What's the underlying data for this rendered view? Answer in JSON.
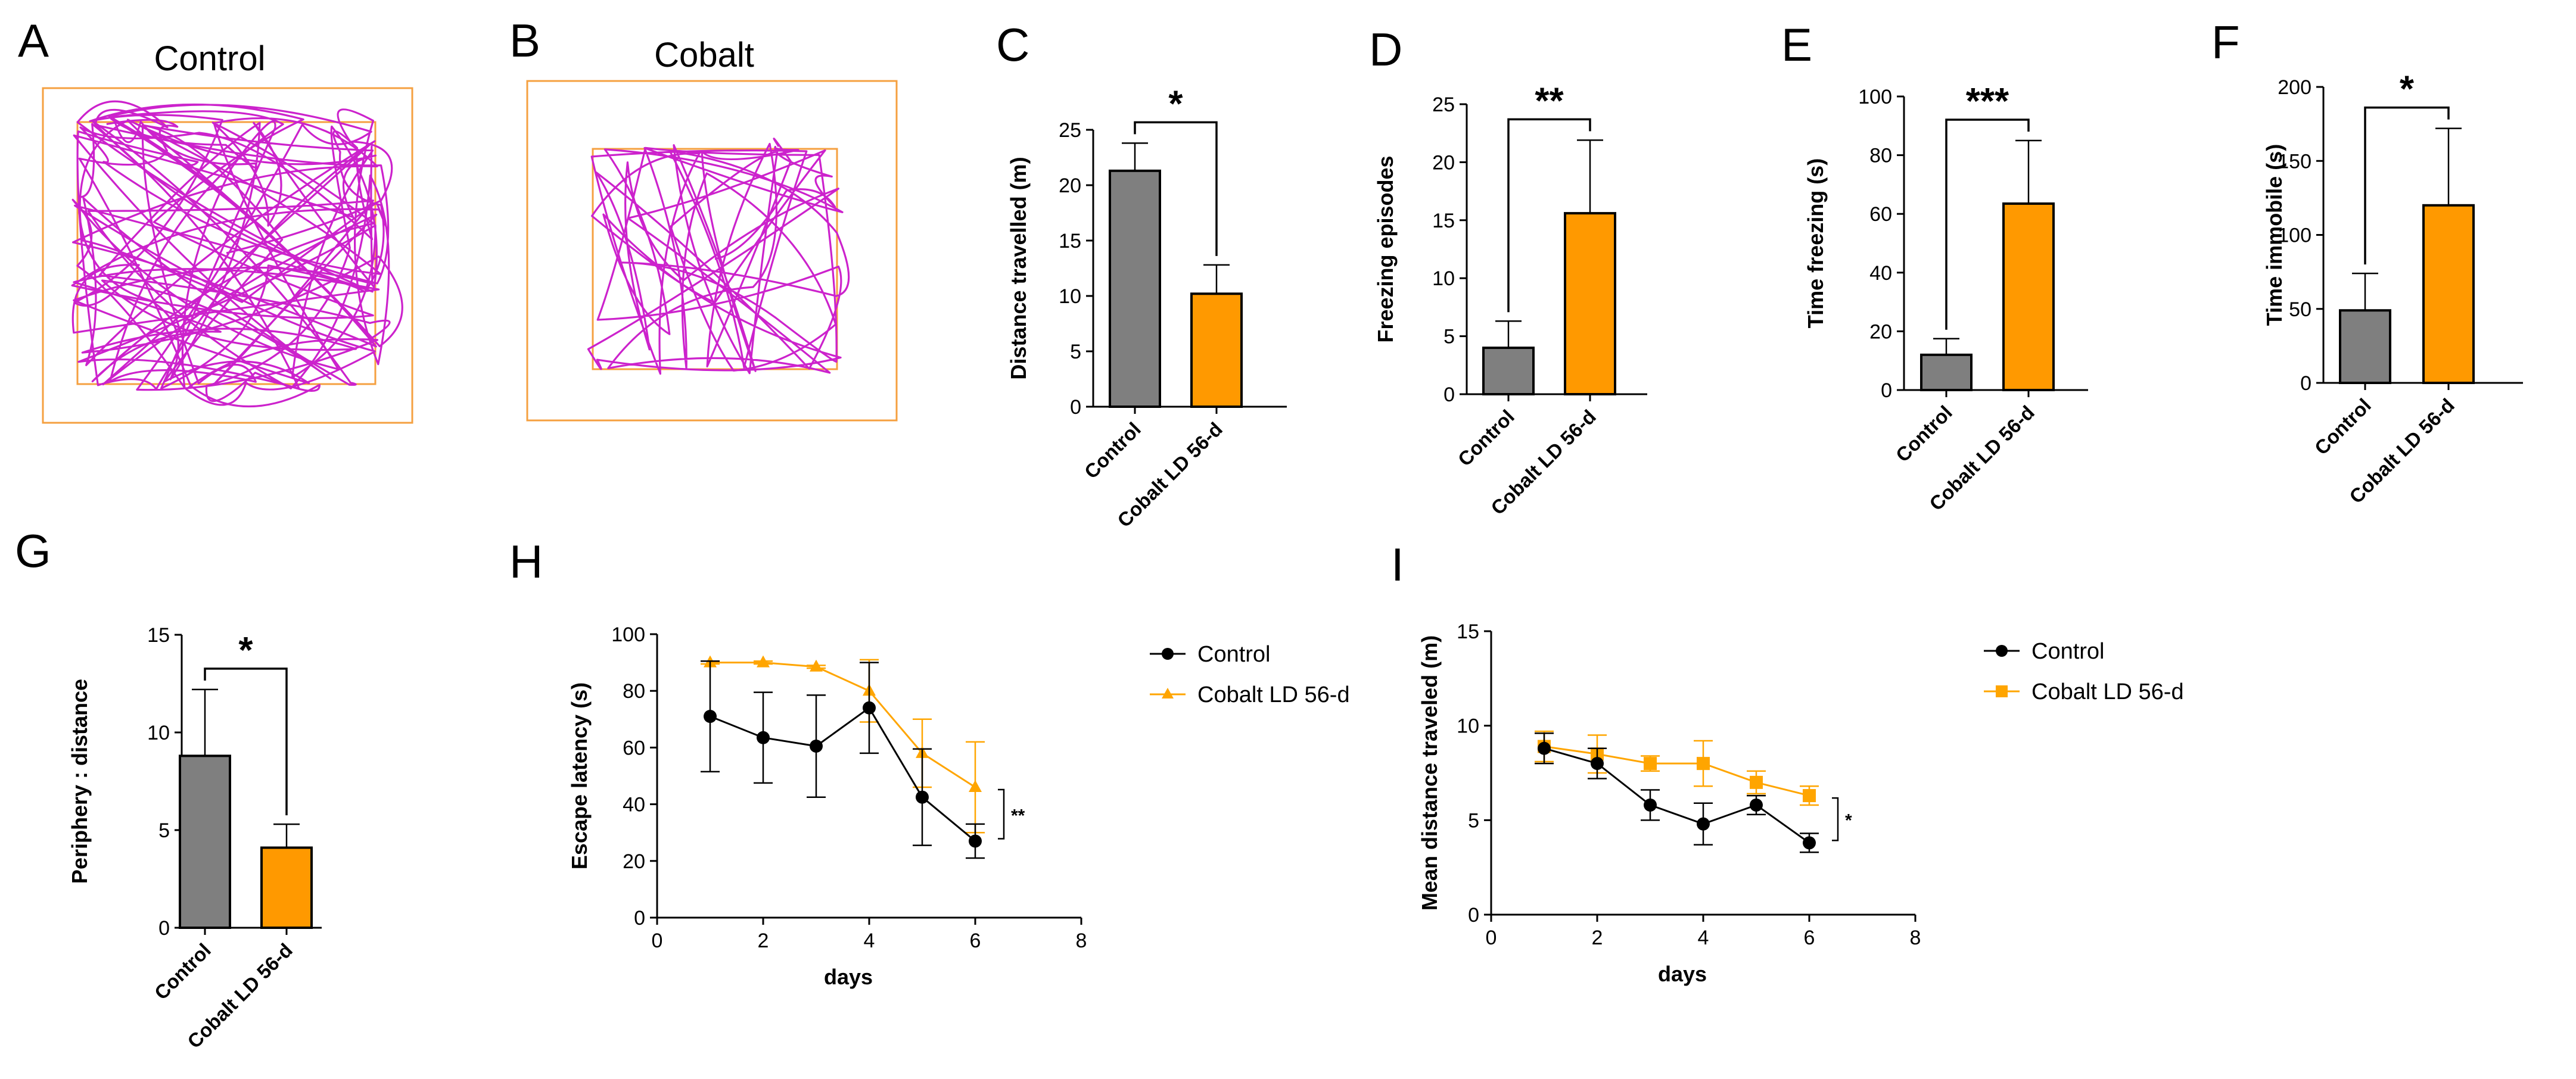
{
  "colors": {
    "control": "#7f7f7f",
    "cobalt": "#ff9900",
    "track": "#cc22cc",
    "arena": "#f5a040",
    "axis": "#000000",
    "line_control": "#000000",
    "line_cobalt": "#ffa500"
  },
  "panels": {
    "A": {
      "letter": "A",
      "title": "Control"
    },
    "B": {
      "letter": "B",
      "title": "Cobalt"
    },
    "C": {
      "letter": "C"
    },
    "D": {
      "letter": "D"
    },
    "E": {
      "letter": "E"
    },
    "F": {
      "letter": "F"
    },
    "G": {
      "letter": "G"
    },
    "H": {
      "letter": "H"
    },
    "I": {
      "letter": "I"
    }
  },
  "chart_data": [
    {
      "id": "C",
      "type": "bar",
      "categories": [
        "Control",
        "Cobalt LD 56-d"
      ],
      "values": [
        21.3,
        10.2
      ],
      "errors": [
        2.5,
        2.6
      ],
      "ylabel": "Distance travelled (m)",
      "ylim": [
        0,
        25
      ],
      "yticks": [
        0,
        5,
        10,
        15,
        20,
        25
      ],
      "significance": "*"
    },
    {
      "id": "D",
      "type": "bar",
      "categories": [
        "Control",
        "Cobalt LD 56-d"
      ],
      "values": [
        4.0,
        15.6
      ],
      "errors": [
        2.3,
        6.3
      ],
      "ylabel": "Freezing episodes",
      "ylim": [
        0,
        25
      ],
      "yticks": [
        0,
        5,
        10,
        15,
        20,
        25
      ],
      "significance": "**"
    },
    {
      "id": "E",
      "type": "bar",
      "categories": [
        "Control",
        "Cobalt LD 56-d"
      ],
      "values": [
        12,
        63.5
      ],
      "errors": [
        5.5,
        21.5
      ],
      "ylabel": "Time freezing (s)",
      "ylim": [
        0,
        100
      ],
      "yticks": [
        0,
        20,
        40,
        60,
        80,
        100
      ],
      "significance": "***"
    },
    {
      "id": "F",
      "type": "bar",
      "categories": [
        "Control",
        "Cobalt LD 56-d"
      ],
      "values": [
        49,
        120
      ],
      "errors": [
        25,
        52
      ],
      "ylabel": "Time immobile (s)",
      "ylim": [
        0,
        200
      ],
      "yticks": [
        0,
        50,
        100,
        150,
        200
      ],
      "significance": "*"
    },
    {
      "id": "G",
      "type": "bar",
      "categories": [
        "Control",
        "Cobalt LD 56-d"
      ],
      "values": [
        8.8,
        4.1
      ],
      "errors": [
        3.4,
        1.2
      ],
      "ylabel": "Periphery : distance",
      "ylim": [
        0,
        15
      ],
      "yticks": [
        0,
        5,
        10,
        15
      ],
      "significance": "*"
    },
    {
      "id": "H",
      "type": "line",
      "xlabel": "days",
      "ylabel": "Escape latency (s)",
      "xlim": [
        0,
        8
      ],
      "ylim": [
        0,
        100
      ],
      "xticks": [
        0,
        2,
        4,
        6,
        8
      ],
      "yticks": [
        0,
        20,
        40,
        60,
        80,
        100
      ],
      "significance": "**",
      "series": [
        {
          "name": "Control",
          "marker": "circle",
          "x": [
            1,
            2,
            3,
            4,
            5,
            6
          ],
          "y": [
            71,
            63.5,
            60.5,
            74,
            42.5,
            27
          ],
          "err": [
            19.5,
            16,
            18,
            16,
            17,
            6
          ]
        },
        {
          "name": "Cobalt LD 56-d",
          "marker": "triangle",
          "x": [
            1,
            2,
            3,
            4,
            5,
            6
          ],
          "y": [
            90,
            90,
            88.5,
            80,
            58,
            46
          ],
          "err": [
            0.5,
            0.5,
            0.5,
            11,
            12,
            16
          ]
        }
      ]
    },
    {
      "id": "I",
      "type": "line",
      "xlabel": "days",
      "ylabel": "Mean distance traveled (m)",
      "xlim": [
        0,
        8
      ],
      "ylim": [
        0,
        15
      ],
      "xticks": [
        0,
        2,
        4,
        6,
        8
      ],
      "yticks": [
        0,
        5,
        10,
        15
      ],
      "significance": "*",
      "series": [
        {
          "name": "Control",
          "marker": "circle",
          "x": [
            1,
            2,
            3,
            4,
            5,
            6
          ],
          "y": [
            8.8,
            8.0,
            5.8,
            4.8,
            5.8,
            3.8
          ],
          "err": [
            0.8,
            0.8,
            0.8,
            1.1,
            0.5,
            0.5
          ]
        },
        {
          "name": "Cobalt LD 56-d",
          "marker": "square",
          "x": [
            1,
            2,
            3,
            4,
            5,
            6
          ],
          "y": [
            8.9,
            8.5,
            8.0,
            8.0,
            7.0,
            6.3
          ],
          "err": [
            0.8,
            1.0,
            0.4,
            1.2,
            0.6,
            0.5
          ]
        }
      ]
    }
  ]
}
